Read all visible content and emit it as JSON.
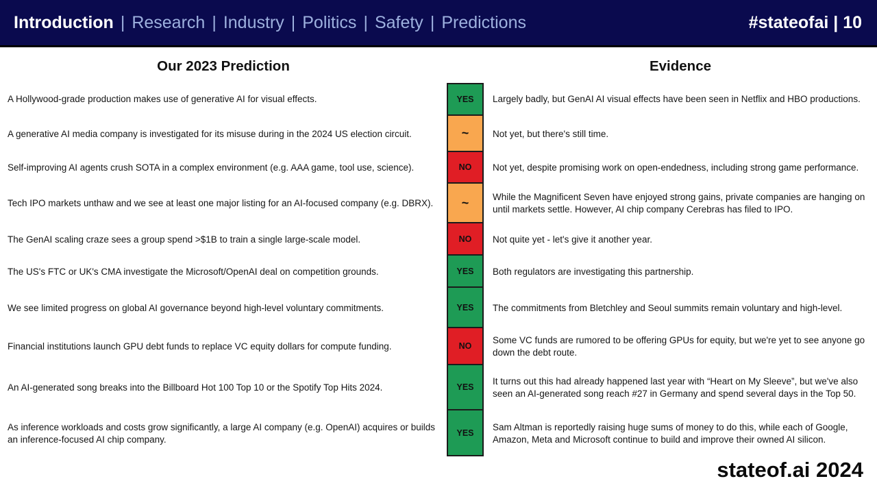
{
  "header": {
    "nav_items": [
      {
        "label": "Introduction",
        "active": true
      },
      {
        "label": "Research",
        "active": false
      },
      {
        "label": "Industry",
        "active": false
      },
      {
        "label": "Politics",
        "active": false
      },
      {
        "label": "Safety",
        "active": false
      },
      {
        "label": "Predictions",
        "active": false
      }
    ],
    "separator": "|",
    "badge": "#stateofai | 10"
  },
  "columns": {
    "prediction": "Our 2023 Prediction",
    "evidence": "Evidence"
  },
  "rows": [
    {
      "prediction": "A Hollywood-grade production makes use of generative AI for visual effects.",
      "verdict": "YES",
      "status": "yes",
      "evidence": "Largely badly, but GenAI AI visual effects have been seen in Netflix and HBO productions."
    },
    {
      "prediction": "A generative AI media company is investigated for its misuse during in the 2024 US election circuit.",
      "verdict": "~",
      "status": "partial",
      "evidence": "Not yet, but there's still time."
    },
    {
      "prediction": "Self-improving AI agents crush SOTA in a complex environment (e.g. AAA game, tool use, science).",
      "verdict": "NO",
      "status": "no",
      "evidence": "Not yet, despite promising work on open-endedness, including strong game performance."
    },
    {
      "prediction": "Tech IPO markets unthaw and we see at least one major listing for an AI-focused company (e.g. DBRX).",
      "verdict": "~",
      "status": "partial",
      "evidence": "While the Magnificent Seven have enjoyed strong gains, private companies are hanging on until markets settle. However, AI chip company Cerebras has filed to IPO."
    },
    {
      "prediction": "The GenAI scaling craze sees a group spend >$1B to train a single large-scale model.",
      "verdict": "NO",
      "status": "no",
      "evidence": "Not quite yet - let's give it another year."
    },
    {
      "prediction": "The US's FTC or UK's CMA investigate the Microsoft/OpenAI deal on competition grounds.",
      "verdict": "YES",
      "status": "yes",
      "evidence": "Both regulators are investigating this partnership."
    },
    {
      "prediction": "We see limited progress on global AI governance beyond high-level voluntary commitments.",
      "verdict": "YES",
      "status": "yes",
      "evidence": "The commitments from Bletchley and Seoul summits remain voluntary and high-level."
    },
    {
      "prediction": "Financial institutions launch GPU debt funds to replace VC equity dollars for compute funding.",
      "verdict": "NO",
      "status": "no",
      "evidence": "Some VC funds are rumored to be offering GPUs for equity, but we're yet to see anyone go down the debt route."
    },
    {
      "prediction": "An AI-generated song breaks into the Billboard Hot 100 Top 10 or the Spotify Top Hits 2024.",
      "verdict": "YES",
      "status": "yes",
      "evidence": "It turns out this had already happened last year with “Heart on My Sleeve”, but we've also seen an AI-generated song reach #27 in Germany and spend several days in the Top 50."
    },
    {
      "prediction": "As inference workloads and costs grow significantly, a large AI company (e.g. OpenAI) acquires or builds an inference-focused AI chip company.",
      "verdict": "YES",
      "status": "yes",
      "evidence": "Sam Altman is reportedly raising huge sums of money to do this, while each of Google, Amazon, Meta and Microsoft continue to build and improve their owned AI silicon."
    }
  ],
  "footer": "stateof.ai 2024",
  "colors": {
    "header_bg": "#0a0a4e",
    "nav_active": "#ffffff",
    "nav_inactive": "#9db0de",
    "yes": "#1e9b55",
    "partial": "#f9a74f",
    "no": "#e01e25"
  }
}
